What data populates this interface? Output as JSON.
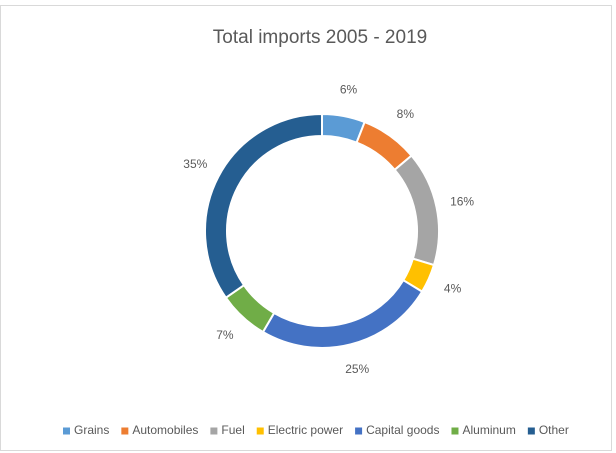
{
  "chart_data": {
    "type": "donut",
    "title": "Total imports 2005 - 2019",
    "categories": [
      "Grains",
      "Automobiles",
      "Fuel",
      "Electric power",
      "Capital goods",
      "Aluminum",
      "Other"
    ],
    "values": [
      6,
      8,
      16,
      4,
      25,
      7,
      35
    ],
    "value_labels": [
      "6%",
      "8%",
      "16%",
      "4%",
      "25%",
      "7%",
      "35%"
    ],
    "colors": [
      "#5b9bd5",
      "#ed7d31",
      "#a5a5a5",
      "#ffc000",
      "#4472c4",
      "#70ad47",
      "#255e91"
    ],
    "legend": "bottom"
  }
}
